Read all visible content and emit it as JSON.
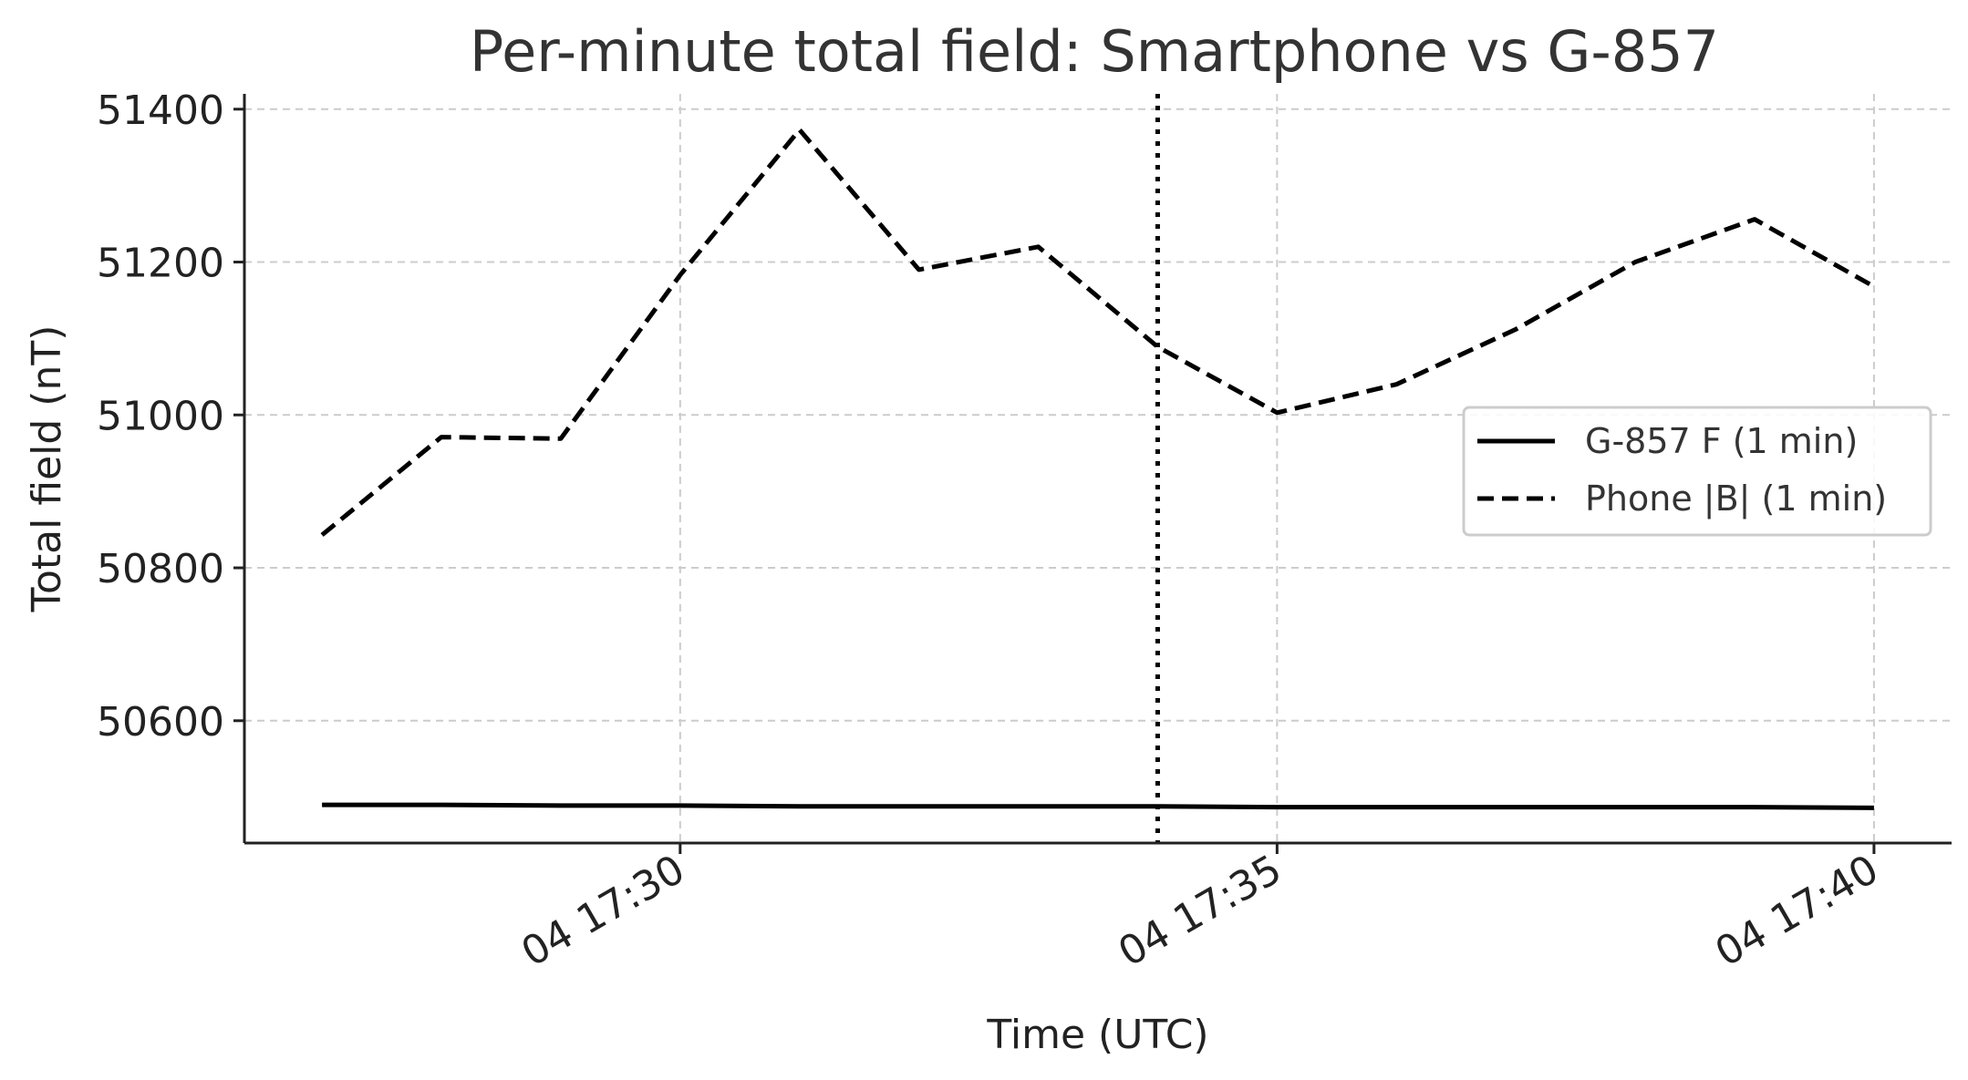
{
  "chart_data": {
    "type": "line",
    "title": "Per-minute total field: Smartphone vs G-857",
    "xlabel": "Time (UTC)",
    "ylabel": "Total field (nT)",
    "x_ticks": [
      "04 17:30",
      "04 17:35",
      "04 17:40"
    ],
    "x_tick_minutes": [
      30,
      35,
      40
    ],
    "x_range_minutes": [
      26.35,
      40.65
    ],
    "y_ticks": [
      50600,
      50800,
      51000,
      51200,
      51400
    ],
    "ylim": [
      50440,
      51420
    ],
    "grid": true,
    "legend_position": "center-right",
    "vline_minute": 34.0,
    "series": [
      {
        "name": "G-857 F (1 min)",
        "style": "solid",
        "color": "#000000",
        "x_minutes": [
          27,
          28,
          29,
          30,
          31,
          32,
          33,
          34,
          35,
          36,
          37,
          38,
          39,
          40
        ],
        "values": [
          50490,
          50490,
          50489,
          50489,
          50488,
          50488,
          50488,
          50488,
          50487,
          50487,
          50487,
          50487,
          50487,
          50486
        ]
      },
      {
        "name": "Phone |B| (1 min)",
        "style": "dashed",
        "color": "#000000",
        "x_minutes": [
          27,
          28,
          29,
          30,
          31,
          32,
          33,
          34,
          35,
          36,
          37,
          38,
          39,
          40
        ],
        "values": [
          50843,
          50971,
          50969,
          51183,
          51373,
          51190,
          51220,
          51089,
          51003,
          51040,
          51112,
          51200,
          51256,
          51168
        ]
      }
    ]
  }
}
